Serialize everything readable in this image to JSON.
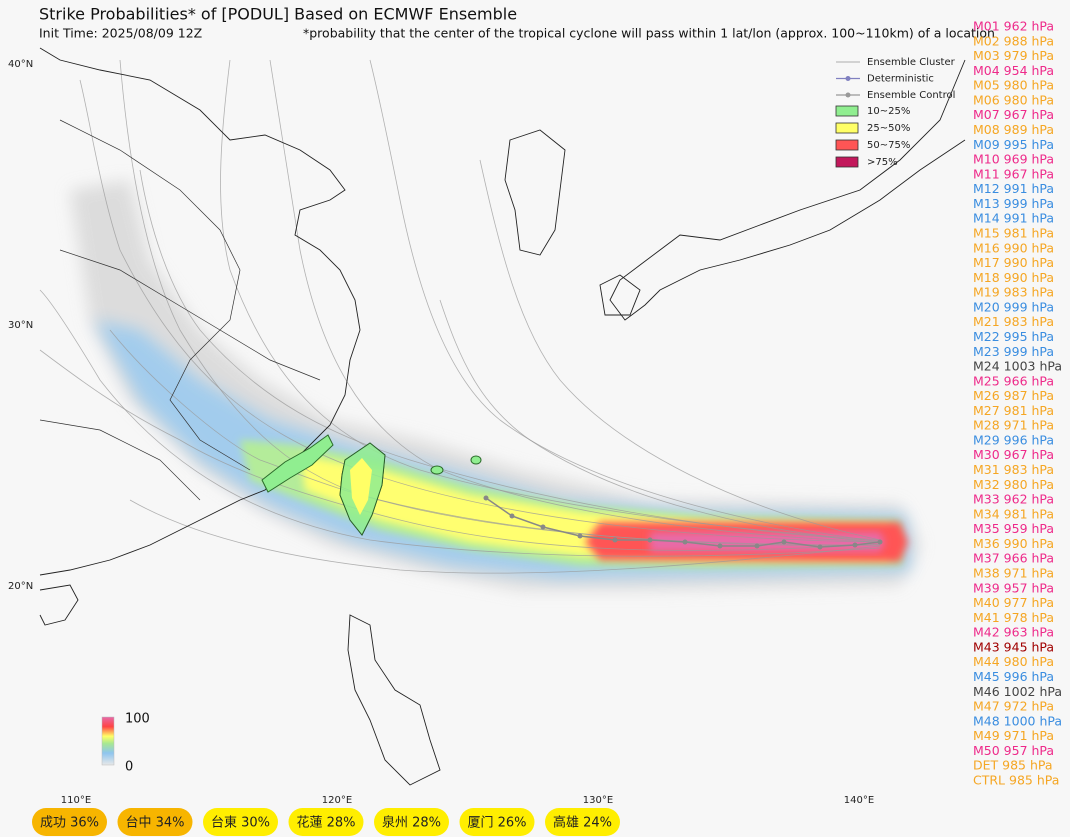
{
  "header": {
    "title": "Strike Probabilities* of [PODUL] Based on ECMWF Ensemble",
    "init_time": "Init Time: 2025/08/09 12Z",
    "footnote": "*probability that the center of the tropical cyclone will pass within 1 lat/lon (approx. 100~110km) of a location"
  },
  "axes": {
    "lat_labels": [
      "40°N",
      "30°N",
      "20°N"
    ],
    "lon_labels": [
      "110°E",
      "120°E",
      "130°E",
      "140°E"
    ]
  },
  "legend": {
    "items": [
      {
        "label": "Ensemble Cluster",
        "color": "#bbbbbb"
      },
      {
        "label": "Deterministic",
        "color": "#8080c0"
      },
      {
        "label": "Ensemble Control",
        "color": "#999999"
      },
      {
        "label": "10~25%",
        "color": "#90ee90"
      },
      {
        "label": "25~50%",
        "color": "#ffff66"
      },
      {
        "label": "50~75%",
        "color": "#ff5555"
      },
      {
        "label": ">75%",
        "color": "#c2185b"
      }
    ]
  },
  "colorbar": {
    "max": 100,
    "min": 0
  },
  "members": [
    {
      "text": "M01 962 hPa",
      "color": "#ee2a8a"
    },
    {
      "text": "M02 988 hPa",
      "color": "#f5a623"
    },
    {
      "text": "M03 979 hPa",
      "color": "#f5a623"
    },
    {
      "text": "M04 954 hPa",
      "color": "#ee2a8a"
    },
    {
      "text": "M05 980 hPa",
      "color": "#f5a623"
    },
    {
      "text": "M06 980 hPa",
      "color": "#f5a623"
    },
    {
      "text": "M07 967 hPa",
      "color": "#ee2a8a"
    },
    {
      "text": "M08 989 hPa",
      "color": "#f5a623"
    },
    {
      "text": "M09 995 hPa",
      "color": "#3a8de0"
    },
    {
      "text": "M10 969 hPa",
      "color": "#ee2a8a"
    },
    {
      "text": "M11 967 hPa",
      "color": "#ee2a8a"
    },
    {
      "text": "M12 991 hPa",
      "color": "#3a8de0"
    },
    {
      "text": "M13 999 hPa",
      "color": "#3a8de0"
    },
    {
      "text": "M14 991 hPa",
      "color": "#3a8de0"
    },
    {
      "text": "M15 981 hPa",
      "color": "#f5a623"
    },
    {
      "text": "M16 990 hPa",
      "color": "#f5a623"
    },
    {
      "text": "M17 990 hPa",
      "color": "#f5a623"
    },
    {
      "text": "M18 990 hPa",
      "color": "#f5a623"
    },
    {
      "text": "M19 983 hPa",
      "color": "#f5a623"
    },
    {
      "text": "M20 999 hPa",
      "color": "#3a8de0"
    },
    {
      "text": "M21 983 hPa",
      "color": "#f5a623"
    },
    {
      "text": "M22 995 hPa",
      "color": "#3a8de0"
    },
    {
      "text": "M23 999 hPa",
      "color": "#3a8de0"
    },
    {
      "text": "M24 1003 hPa",
      "color": "#444444"
    },
    {
      "text": "M25 966 hPa",
      "color": "#ee2a8a"
    },
    {
      "text": "M26 987 hPa",
      "color": "#f5a623"
    },
    {
      "text": "M27 981 hPa",
      "color": "#f5a623"
    },
    {
      "text": "M28 971 hPa",
      "color": "#f5a623"
    },
    {
      "text": "M29 996 hPa",
      "color": "#3a8de0"
    },
    {
      "text": "M30 967 hPa",
      "color": "#ee2a8a"
    },
    {
      "text": "M31 983 hPa",
      "color": "#f5a623"
    },
    {
      "text": "M32 980 hPa",
      "color": "#f5a623"
    },
    {
      "text": "M33 962 hPa",
      "color": "#ee2a8a"
    },
    {
      "text": "M34 981 hPa",
      "color": "#f5a623"
    },
    {
      "text": "M35 959 hPa",
      "color": "#ee2a8a"
    },
    {
      "text": "M36 990 hPa",
      "color": "#f5a623"
    },
    {
      "text": "M37 966 hPa",
      "color": "#ee2a8a"
    },
    {
      "text": "M38 971 hPa",
      "color": "#f5a623"
    },
    {
      "text": "M39 957 hPa",
      "color": "#ee2a8a"
    },
    {
      "text": "M40 977 hPa",
      "color": "#f5a623"
    },
    {
      "text": "M41 978 hPa",
      "color": "#f5a623"
    },
    {
      "text": "M42 963 hPa",
      "color": "#ee2a8a"
    },
    {
      "text": "M43 945 hPa",
      "color": "#a00000"
    },
    {
      "text": "M44 980 hPa",
      "color": "#f5a623"
    },
    {
      "text": "M45 996 hPa",
      "color": "#3a8de0"
    },
    {
      "text": "M46 1002 hPa",
      "color": "#444444"
    },
    {
      "text": "M47 972 hPa",
      "color": "#f5a623"
    },
    {
      "text": "M48 1000 hPa",
      "color": "#3a8de0"
    },
    {
      "text": "M49 971 hPa",
      "color": "#f5a623"
    },
    {
      "text": "M50 957 hPa",
      "color": "#ee2a8a"
    },
    {
      "text": "DET 985 hPa",
      "color": "#f5a623"
    },
    {
      "text": "CTRL 985 hPa",
      "color": "#f5a623"
    }
  ],
  "cities": [
    {
      "text": "成功 36%",
      "color": "#f7b500"
    },
    {
      "text": "台中 34%",
      "color": "#f7b500"
    },
    {
      "text": "台東 30%",
      "color": "#ffee00"
    },
    {
      "text": "花蓮 28%",
      "color": "#ffee00"
    },
    {
      "text": "泉州 28%",
      "color": "#ffee00"
    },
    {
      "text": "厦门 26%",
      "color": "#ffee00"
    },
    {
      "text": "高雄 24%",
      "color": "#ffee00"
    }
  ]
}
